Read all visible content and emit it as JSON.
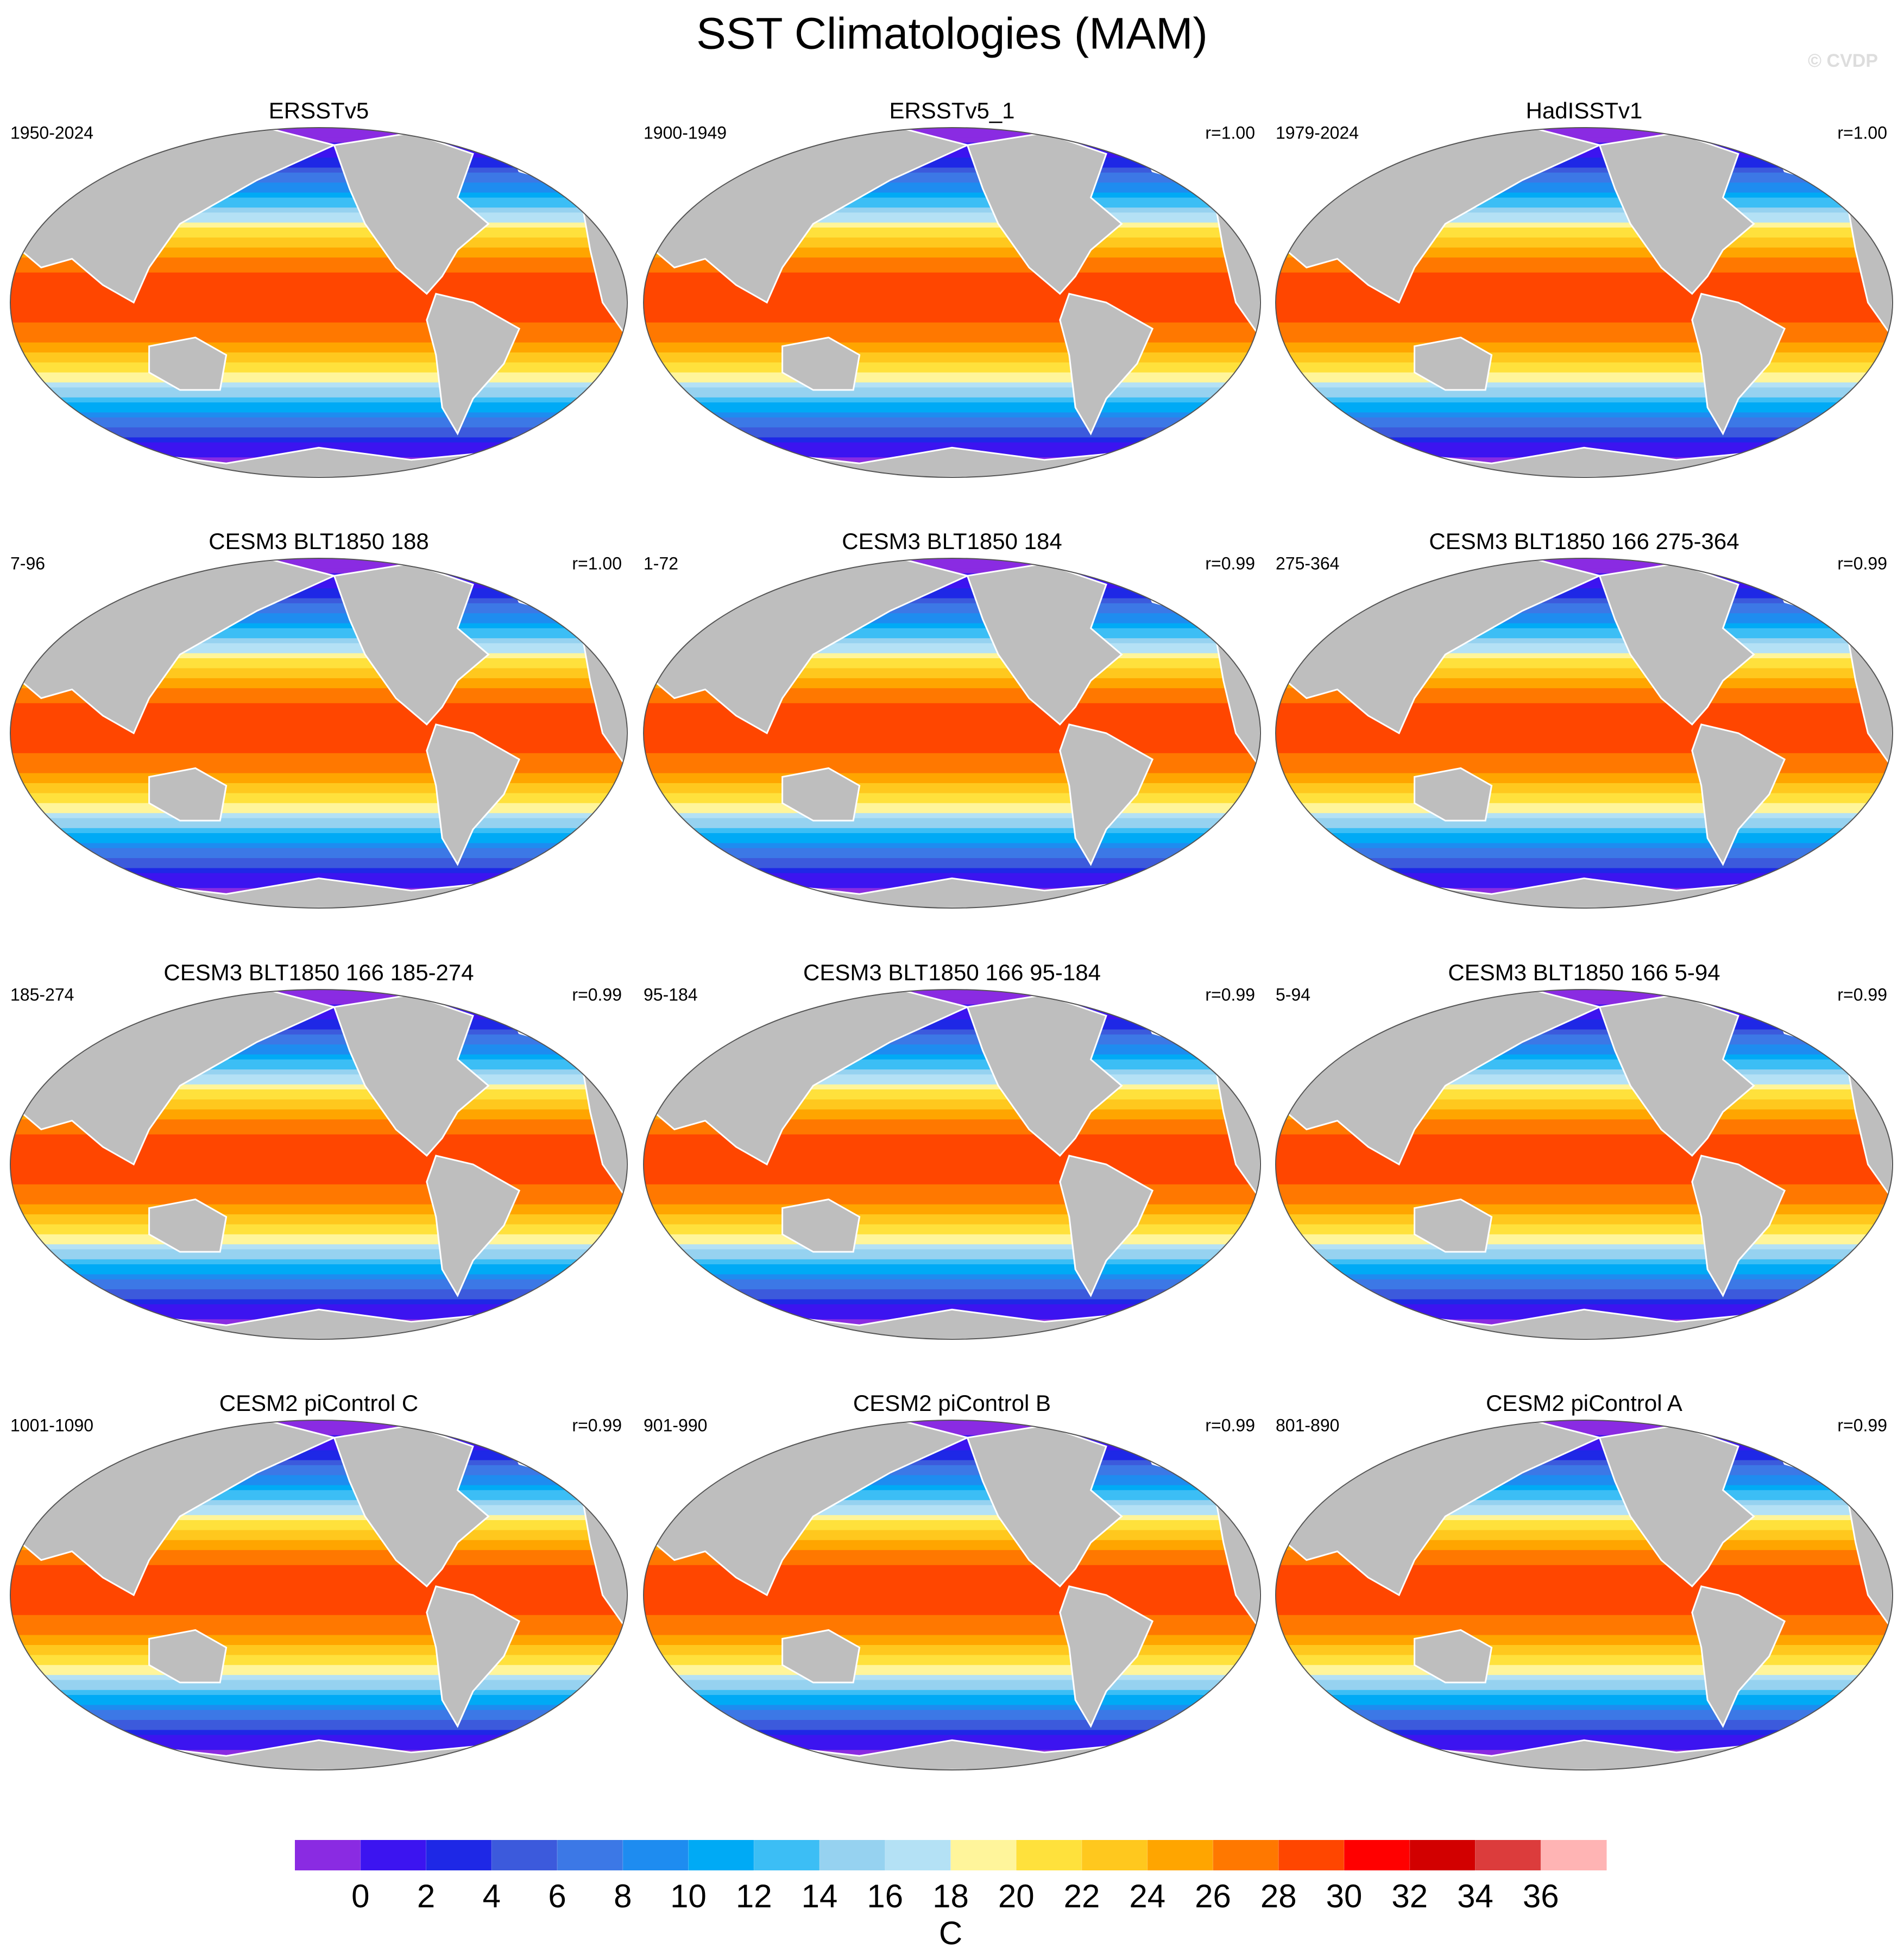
{
  "chart_data": {
    "type": "map-panels",
    "title": "SST Climatologies (MAM)",
    "watermark": "© CVDP",
    "panels": [
      {
        "title": "ERSSTv5",
        "period": "1950-2024"
      },
      {
        "title": "ERSSTv5_1",
        "period": "1900-1949",
        "r": "r=1.00"
      },
      {
        "title": "HadISSTv1",
        "period": "1979-2024",
        "r": "r=1.00"
      },
      {
        "title": "CESM3 BLT1850 188",
        "period": "7-96",
        "r": "r=1.00"
      },
      {
        "title": "CESM3 BLT1850 184",
        "period": "1-72",
        "r": "r=0.99"
      },
      {
        "title": "CESM3 BLT1850 166 275-364",
        "period": "275-364",
        "r": "r=0.99"
      },
      {
        "title": "CESM3 BLT1850 166 185-274",
        "period": "185-274",
        "r": "r=0.99"
      },
      {
        "title": "CESM3 BLT1850 166 95-184",
        "period": "95-184",
        "r": "r=0.99"
      },
      {
        "title": "CESM3 BLT1850 166 5-94",
        "period": "5-94",
        "r": "r=0.99"
      },
      {
        "title": "CESM2 piControl C",
        "period": "1001-1090",
        "r": "r=0.99"
      },
      {
        "title": "CESM2 piControl B",
        "period": "901-990",
        "r": "r=0.99"
      },
      {
        "title": "CESM2 piControl A",
        "period": "801-890",
        "r": "r=0.99"
      }
    ],
    "colorbar": {
      "label": "C",
      "ticks": [
        0,
        2,
        4,
        6,
        8,
        10,
        12,
        14,
        16,
        18,
        20,
        22,
        24,
        26,
        28,
        30,
        32,
        34,
        36
      ],
      "colors": [
        "#8a2be2",
        "#3c14f0",
        "#1e28e6",
        "#3c5adc",
        "#3c78e6",
        "#1e8cf0",
        "#00aaf5",
        "#3cbef5",
        "#96d2f0",
        "#b4e1f5",
        "#fff59b",
        "#ffe13c",
        "#ffc81e",
        "#ffa500",
        "#ff7800",
        "#ff4600",
        "#ff0000",
        "#d20000",
        "#dc3c3c",
        "#ffb4b4"
      ]
    }
  }
}
